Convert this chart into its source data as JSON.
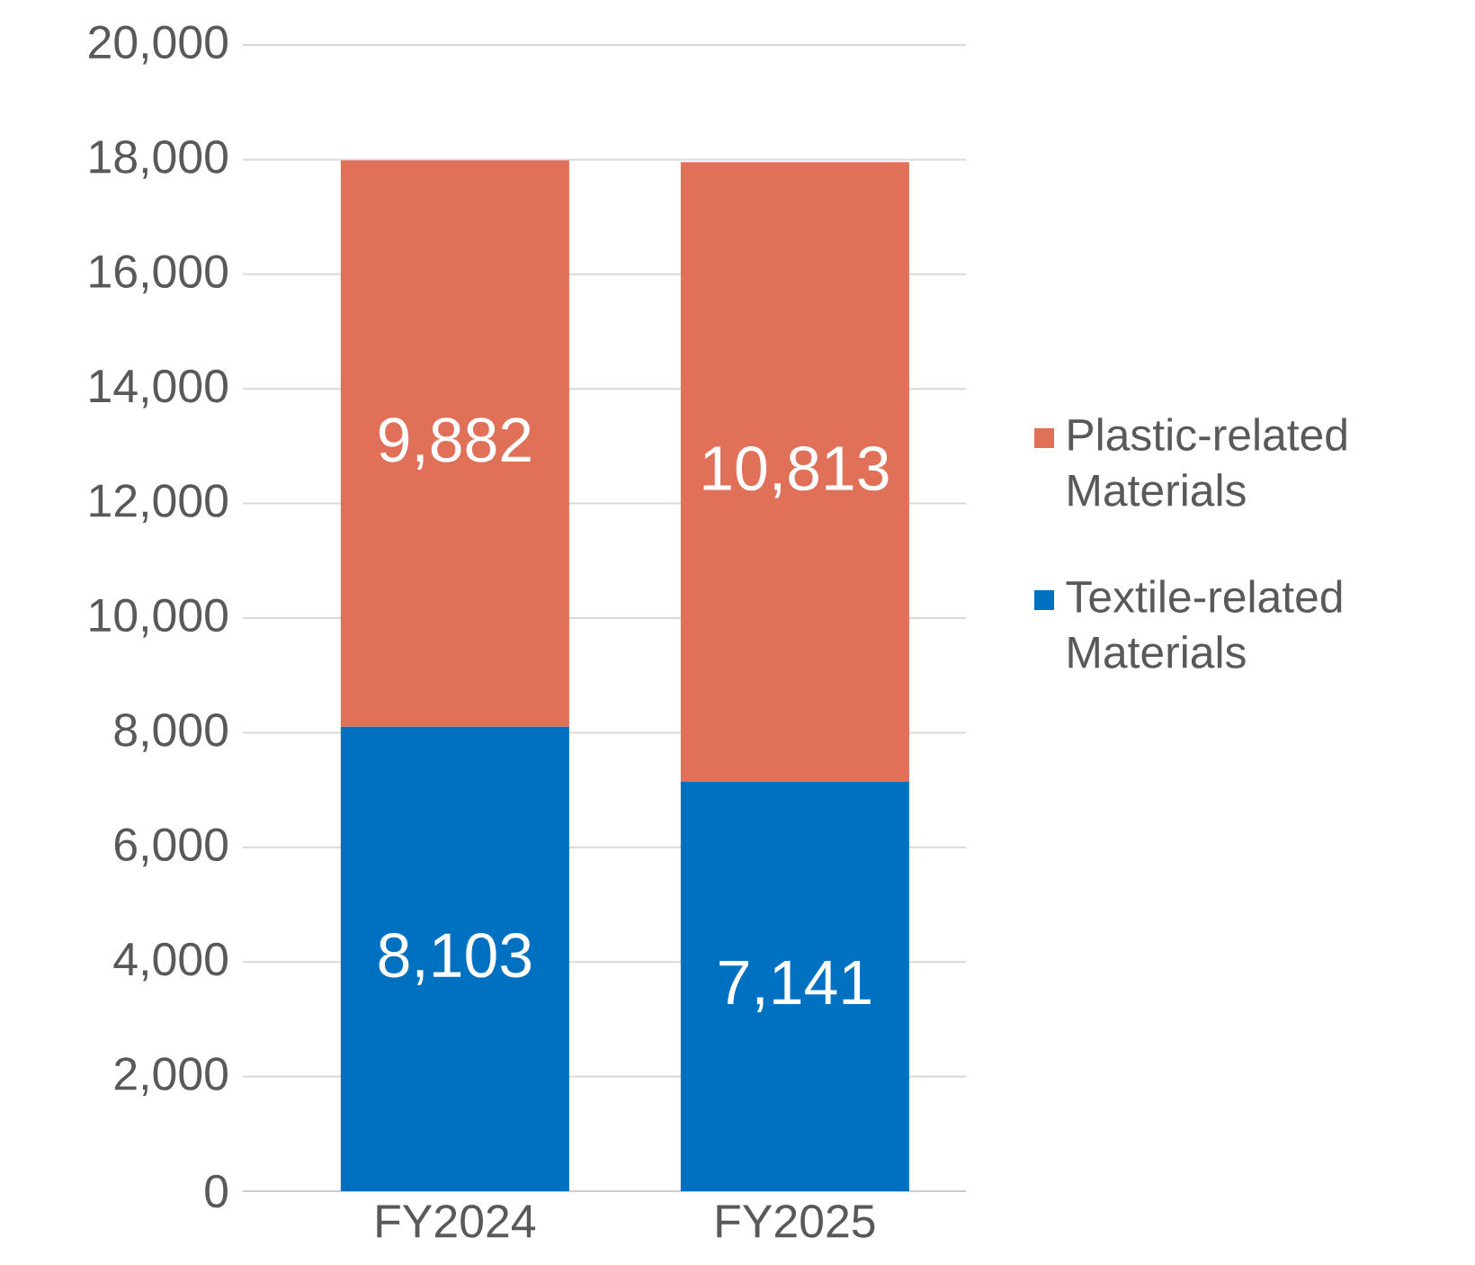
{
  "chart_data": {
    "type": "bar",
    "stacked": true,
    "categories": [
      "FY2024",
      "FY2025"
    ],
    "series": [
      {
        "name": "Textile-related Materials",
        "color": "#0070c0",
        "values": [
          8103,
          7141
        ],
        "value_labels": [
          "8,103",
          "7,141"
        ]
      },
      {
        "name": "Plastic-related Materials",
        "color": "#e07058",
        "values": [
          9882,
          10813
        ],
        "value_labels": [
          "9,882",
          "10,813"
        ]
      }
    ],
    "ylim": [
      0,
      20000
    ],
    "yticks": [
      0,
      {
        "value": 2000,
        "label": "2,000"
      },
      {
        "value": 4000,
        "label": "4,000"
      },
      {
        "value": 6000,
        "label": "6,000"
      },
      {
        "value": 8000,
        "label": "8,000"
      },
      {
        "value": 10000,
        "label": "10,000"
      },
      {
        "value": 12000,
        "label": "12,000"
      },
      {
        "value": 14000,
        "label": "14,000"
      },
      {
        "value": 16000,
        "label": "16,000"
      },
      {
        "value": 18000,
        "label": "18,000"
      },
      {
        "value": 20000,
        "label": "20,000"
      }
    ],
    "grid": "y",
    "legend": "right"
  }
}
